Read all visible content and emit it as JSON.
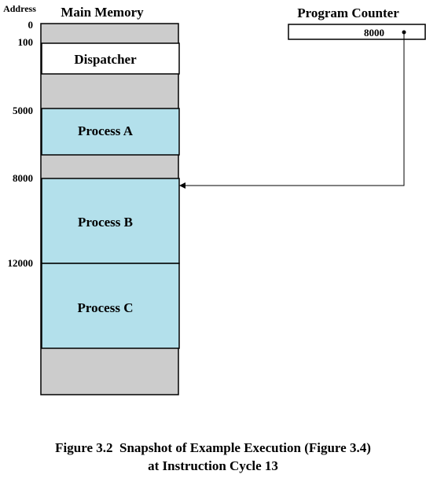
{
  "addresses": {
    "header": "Address",
    "labels": [
      "0",
      "100",
      "5000",
      "8000",
      "12000"
    ]
  },
  "main_memory": {
    "title": "Main Memory",
    "blocks": [
      {
        "label": "Dispatcher",
        "fill": "#ffffff"
      },
      {
        "label": "Process A",
        "fill": "#b3e0eb"
      },
      {
        "label": "Process B",
        "fill": "#b3e0eb"
      },
      {
        "label": "Process C",
        "fill": "#b3e0eb"
      }
    ],
    "background_fill": "#cccccc"
  },
  "program_counter": {
    "title": "Program Counter",
    "value": "8000"
  },
  "caption": {
    "line1": "Figure 3.2  Snapshot of Example Execution (Figure 3.4)",
    "line2": "at Instruction Cycle 13"
  },
  "colors": {
    "memory_gray": "#cccccc",
    "process_blue": "#b3e0eb",
    "stroke": "#000000"
  }
}
